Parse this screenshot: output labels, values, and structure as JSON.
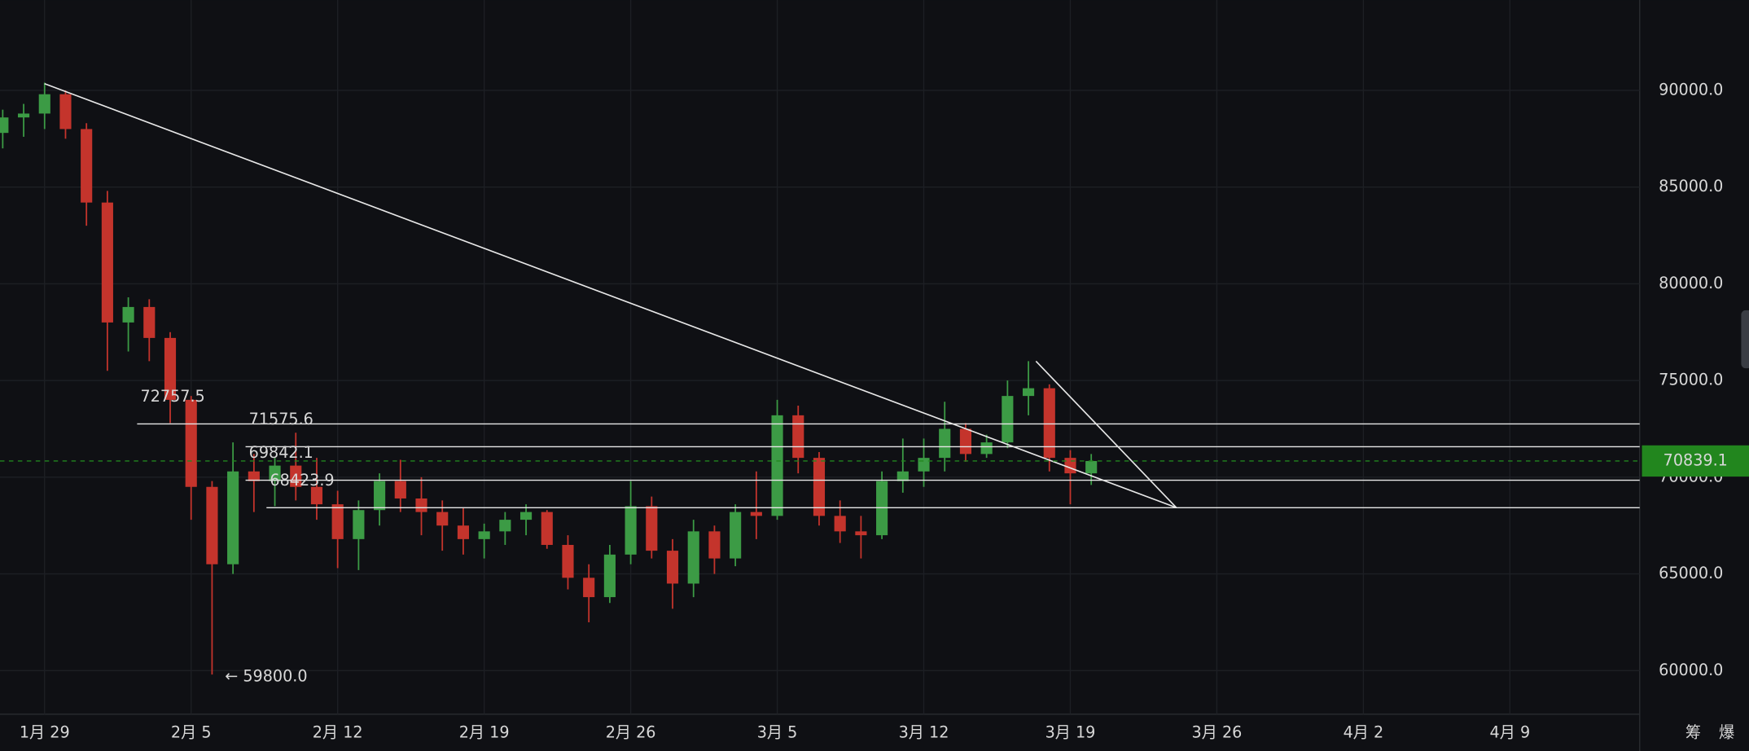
{
  "chart_data": {
    "type": "candlestick",
    "xlim": [
      -2.13,
      76.2
    ],
    "xticks": [
      {
        "value": 0,
        "label": "1月 29"
      },
      {
        "value": 7,
        "label": "2月 5"
      },
      {
        "value": 14,
        "label": "2月 12"
      },
      {
        "value": 21,
        "label": "2月 19"
      },
      {
        "value": 28,
        "label": "2月 26"
      },
      {
        "value": 35,
        "label": "3月 5"
      },
      {
        "value": 42,
        "label": "3月 12"
      },
      {
        "value": 49,
        "label": "3月 19"
      },
      {
        "value": 56,
        "label": "3月 26"
      },
      {
        "value": 63,
        "label": "4月 2"
      },
      {
        "value": 70,
        "label": "4月 9"
      }
    ],
    "ylim": [
      57750,
      94670
    ],
    "yticks": [
      {
        "value": 60000,
        "label": "60000.0"
      },
      {
        "value": 65000,
        "label": "65000.0"
      },
      {
        "value": 70000,
        "label": "70000.0"
      },
      {
        "value": 75000,
        "label": "75000.0"
      },
      {
        "value": 80000,
        "label": "80000.0"
      },
      {
        "value": 85000,
        "label": "85000.0"
      },
      {
        "value": 90000,
        "label": "90000.0"
      }
    ],
    "grid": true,
    "up_color": "#3c9b45",
    "down_color": "#c4342c",
    "candles": {
      "x": [
        -2,
        -1,
        0,
        1,
        2,
        3,
        4,
        5,
        6,
        7,
        8,
        9,
        10,
        11,
        12,
        13,
        14,
        15,
        16,
        17,
        18,
        19,
        20,
        21,
        22,
        23,
        24,
        25,
        26,
        27,
        28,
        29,
        30,
        31,
        32,
        33,
        34,
        35,
        36,
        37,
        38,
        39,
        40,
        41,
        42,
        43,
        44,
        45,
        46,
        47,
        48,
        49,
        50
      ],
      "open": [
        87800,
        88600,
        88800,
        89800,
        88000,
        84200,
        78000,
        78800,
        77200,
        74000,
        69500,
        65500,
        70300,
        69800,
        70600,
        69500,
        68600,
        66800,
        68300,
        69800,
        68900,
        68200,
        67500,
        66800,
        67200,
        67800,
        68200,
        66500,
        64800,
        63800,
        66000,
        68500,
        66200,
        64500,
        67200,
        65800,
        68200,
        68000,
        73200,
        71000,
        68000,
        67200,
        67000,
        69800,
        70300,
        71000,
        72500,
        71200,
        71800,
        74200,
        74600,
        71000,
        70200
      ],
      "high": [
        89000,
        89300,
        90400,
        90000,
        88300,
        84800,
        79300,
        79200,
        77500,
        74200,
        69800,
        71800,
        71200,
        71000,
        72300,
        71000,
        69300,
        68800,
        70200,
        70900,
        70000,
        68800,
        68400,
        67600,
        68200,
        68600,
        68300,
        67000,
        65500,
        66500,
        69800,
        69000,
        66800,
        67800,
        67500,
        68600,
        70300,
        74000,
        73700,
        71300,
        68800,
        68000,
        70300,
        72000,
        72000,
        73900,
        72800,
        72200,
        75000,
        76000,
        74800,
        71400,
        71200
      ],
      "low": [
        87000,
        87600,
        88000,
        87500,
        83000,
        75500,
        76500,
        76000,
        72800,
        67800,
        59800,
        65000,
        68200,
        68500,
        68800,
        67800,
        65300,
        65200,
        67500,
        68200,
        67000,
        66200,
        66000,
        65800,
        66500,
        67000,
        66300,
        64200,
        62500,
        63500,
        65500,
        65800,
        63200,
        63800,
        65000,
        65400,
        66800,
        67800,
        70200,
        67500,
        66600,
        65800,
        66800,
        69200,
        69500,
        70300,
        70800,
        71000,
        71500,
        73200,
        70300,
        68600,
        69600
      ],
      "close": [
        88600,
        88800,
        89800,
        88000,
        84200,
        78000,
        78800,
        77200,
        74000,
        69500,
        65500,
        70300,
        69800,
        70600,
        69500,
        68600,
        66800,
        68300,
        69800,
        68900,
        68200,
        67500,
        66800,
        67200,
        67800,
        68200,
        66500,
        64800,
        63800,
        66000,
        68500,
        66200,
        64500,
        67200,
        65800,
        68200,
        68000,
        73200,
        71000,
        68000,
        67200,
        67000,
        69800,
        70300,
        71000,
        72500,
        71200,
        71800,
        74200,
        74600,
        71000,
        70200,
        70839.1
      ]
    },
    "levels": [
      {
        "value": 72757.5,
        "x_start": 4.42
      },
      {
        "value": 71575.6,
        "x_start": 9.6
      },
      {
        "value": 69842.1,
        "x_start": 9.6
      },
      {
        "value": 68423.9,
        "x_start": 10.6
      }
    ],
    "trend_lines": [
      {
        "x": [
          0,
          54.07
        ],
        "y": [
          90346,
          68423.9
        ]
      },
      {
        "x": [
          47.36,
          54.07
        ],
        "y": [
          76000,
          68423.9
        ]
      }
    ],
    "low_marker": {
      "x": 8.4,
      "value": 59800,
      "label": "← 59800.0"
    },
    "current_price": {
      "value": 70839.1,
      "color": "#22861e"
    },
    "toolbar": [
      "筹",
      "爆"
    ]
  }
}
